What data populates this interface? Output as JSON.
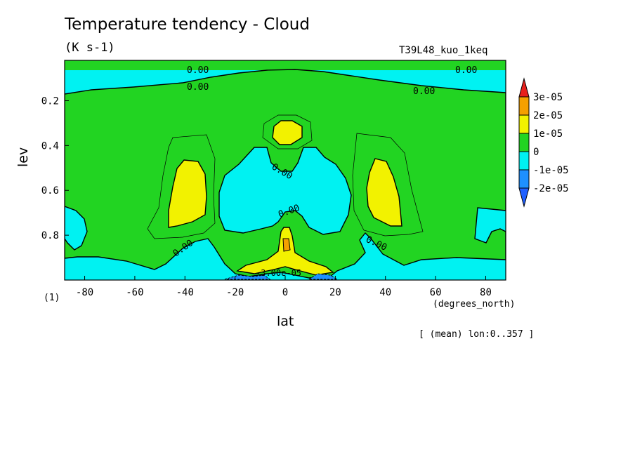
{
  "chart_data": {
    "type": "heatmap",
    "title": "Temperature tendency - Cloud",
    "units": "(K s-1)",
    "experiment": "T39L48_kuo_1keq",
    "xlabel": "lat",
    "x_units": "(degrees_north)",
    "ylabel": "lev",
    "y_units": "(1)",
    "mean_note": "[ (mean) lon:0..357 ]",
    "xlim": [
      -88,
      88
    ],
    "ylim": [
      1.0,
      0.02
    ],
    "x_ticks": [
      -80,
      -60,
      -40,
      -20,
      0,
      20,
      40,
      60,
      80
    ],
    "x_tick_labels": [
      "-80",
      "-60",
      "-40",
      "-20",
      "0",
      "20",
      "40",
      "60",
      "80"
    ],
    "y_ticks": [
      0.2,
      0.4,
      0.6,
      0.8
    ],
    "y_tick_labels": [
      "0.2",
      "0.4",
      "0.6",
      "0.8"
    ],
    "levels": [
      -2e-05,
      -1e-05,
      0,
      1e-05,
      2e-05,
      3e-05
    ],
    "colorbar_labels": [
      "3e-05",
      "2e-05",
      "1e-05",
      "0",
      "-1e-05",
      "-2e-05"
    ],
    "colorbar_colors": [
      "#e8201c",
      "#f5a000",
      "#f2f200",
      "#22d422",
      "#00f2f2",
      "#1e90ff",
      "#2060ff"
    ],
    "contour_labels": [
      "0.00",
      "0.00",
      "0.00",
      "0.00",
      "0.00",
      "0.00",
      "0.00",
      "0.00",
      "0.00",
      "-3.00e-05"
    ],
    "colors": {
      "neg1": "#00f2f2",
      "zero_pos": "#22d422",
      "pos1": "#f2f200",
      "pos2": "#f5a000",
      "neg2": "#1e90ff"
    }
  }
}
